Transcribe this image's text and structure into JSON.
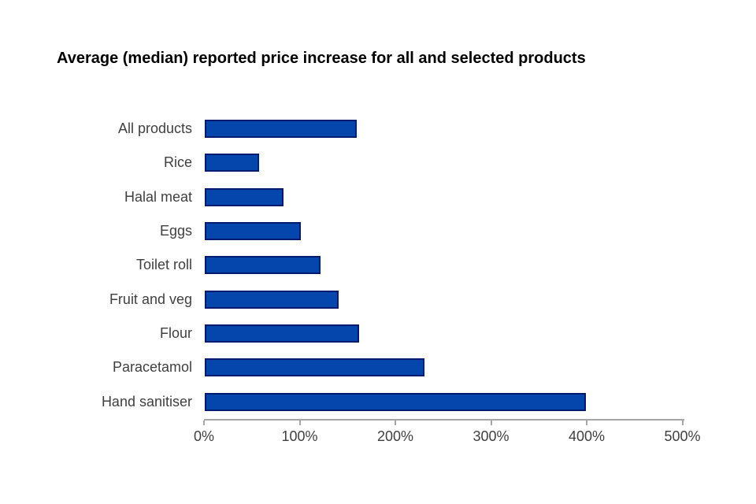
{
  "chart": {
    "title": "Average (median) reported price increase for all and selected products"
  },
  "chart_data": {
    "type": "bar",
    "orientation": "horizontal",
    "title": "Average (median) reported price increase for all and selected products",
    "categories": [
      "All products",
      "Rice",
      "Halal meat",
      "Eggs",
      "Toilet roll",
      "Fruit and veg",
      "Flour",
      "Paracetamol",
      "Hand sanitiser"
    ],
    "values": [
      159,
      57,
      82,
      100,
      121,
      140,
      161,
      230,
      398
    ],
    "unit": "%",
    "xlabel": "",
    "ylabel": "",
    "xlim": [
      0,
      500
    ],
    "x_ticks": [
      "0%",
      "100%",
      "200%",
      "300%",
      "400%",
      "500%"
    ],
    "grid": false,
    "legend": null,
    "colors": {
      "background": "#FFFFFF",
      "title_text": "#000000",
      "label_text": "#404040",
      "axis_line": "#A6A6A6",
      "bar_fill": "#0546AD",
      "bar_border": "#001A70"
    }
  }
}
